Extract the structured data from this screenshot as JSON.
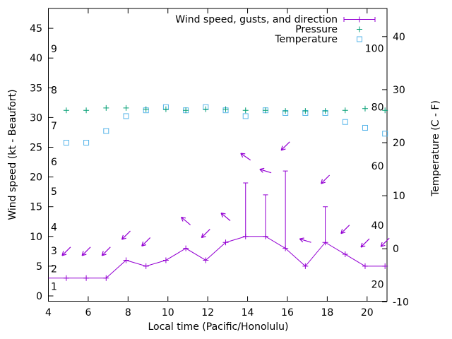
{
  "chart_data": {
    "type": "line",
    "title": "",
    "xlabel": "Local time (Pacific/Honolulu)",
    "x_range": [
      4,
      21
    ],
    "x_ticks": [
      4,
      6,
      8,
      10,
      12,
      14,
      16,
      18,
      20
    ],
    "grid": false,
    "legend_position": "top-right-inside",
    "left_axis": {
      "label": "Wind speed (kt - Beaufort)",
      "units": "kt",
      "range": [
        -0.9,
        48.3
      ],
      "ticks": [
        0,
        5,
        10,
        15,
        20,
        25,
        30,
        35,
        40,
        45
      ],
      "beaufort_inner_labels": [
        {
          "label": "1",
          "kt": 1
        },
        {
          "label": "2",
          "kt": 4
        },
        {
          "label": "3",
          "kt": 7
        },
        {
          "label": "4",
          "kt": 11
        },
        {
          "label": "5",
          "kt": 17
        },
        {
          "label": "6",
          "kt": 22
        },
        {
          "label": "7",
          "kt": 28
        },
        {
          "label": "8",
          "kt": 34
        },
        {
          "label": "9",
          "kt": 41
        }
      ]
    },
    "right_axis": {
      "label": "Temperature (C - F)",
      "units": "C",
      "range": [
        -10,
        45.3
      ],
      "ticks": [
        -10,
        0,
        10,
        20,
        30,
        40
      ],
      "fahrenheit_inner_labels": [
        {
          "label": "20",
          "c": -6.7
        },
        {
          "label": "40",
          "c": 4.4
        },
        {
          "label": "60",
          "c": 15.6
        },
        {
          "label": "80",
          "c": 26.7
        },
        {
          "label": "100",
          "c": 37.8
        }
      ]
    },
    "legend": {
      "entries": [
        {
          "label": "Wind speed, gusts, and direction",
          "color": "#9400d3",
          "sample": "errorbar-line-plus"
        },
        {
          "label": "Pressure",
          "color": "#009e73",
          "sample": "plus"
        },
        {
          "label": "Temperature",
          "color": "#56b4e9",
          "sample": "open-square"
        }
      ]
    },
    "line_enters_at": {
      "time": 4.0,
      "wind_kt": 3
    },
    "observations": {
      "time": [
        4.9,
        5.9,
        6.9,
        7.9,
        8.9,
        9.9,
        10.9,
        11.9,
        12.9,
        13.9,
        14.9,
        15.9,
        16.9,
        17.9,
        18.9,
        19.9,
        20.9
      ],
      "wind_speed_kt": [
        3,
        3,
        3,
        6,
        5,
        6,
        8,
        6,
        9,
        10,
        10,
        8,
        5,
        9,
        7,
        5,
        5
      ],
      "wind_gust_kt": [
        null,
        null,
        null,
        null,
        null,
        null,
        null,
        null,
        null,
        19,
        17,
        21,
        null,
        15,
        null,
        null,
        null
      ],
      "pressure_plotted_on_left_axis": [
        31.2,
        31.2,
        31.6,
        31.6,
        31.4,
        31.4,
        31.2,
        31.4,
        31.4,
        31.2,
        31.2,
        31.1,
        31.1,
        31.1,
        31.2,
        31.5,
        31.2
      ],
      "temperature_c": [
        20.0,
        20.0,
        22.2,
        25.0,
        26.1,
        26.7,
        26.1,
        26.7,
        26.1,
        25.0,
        26.1,
        25.6,
        25.6,
        25.6,
        23.9,
        22.8,
        21.7
      ],
      "direction_arrows": [
        {
          "angle_deg": 135,
          "y_kt": 7.5
        },
        {
          "angle_deg": 135,
          "y_kt": 7.5
        },
        {
          "angle_deg": 135,
          "y_kt": 7.5
        },
        {
          "angle_deg": 135,
          "y_kt": 10.2
        },
        {
          "angle_deg": 135,
          "y_kt": 9.1
        },
        null,
        {
          "angle_deg": 220,
          "y_kt": 12.6
        },
        {
          "angle_deg": 135,
          "y_kt": 10.5
        },
        {
          "angle_deg": 220,
          "y_kt": 13.3
        },
        {
          "angle_deg": 215,
          "y_kt": 23.4
        },
        {
          "angle_deg": 197,
          "y_kt": 21.0
        },
        {
          "angle_deg": 135,
          "y_kt": 25.2
        },
        {
          "angle_deg": 197,
          "y_kt": 9.3
        },
        {
          "angle_deg": 135,
          "y_kt": 19.6
        },
        {
          "angle_deg": 135,
          "y_kt": 11.2
        },
        {
          "angle_deg": 135,
          "y_kt": 8.9
        },
        {
          "angle_deg": 135,
          "y_kt": 9.0
        }
      ]
    }
  }
}
